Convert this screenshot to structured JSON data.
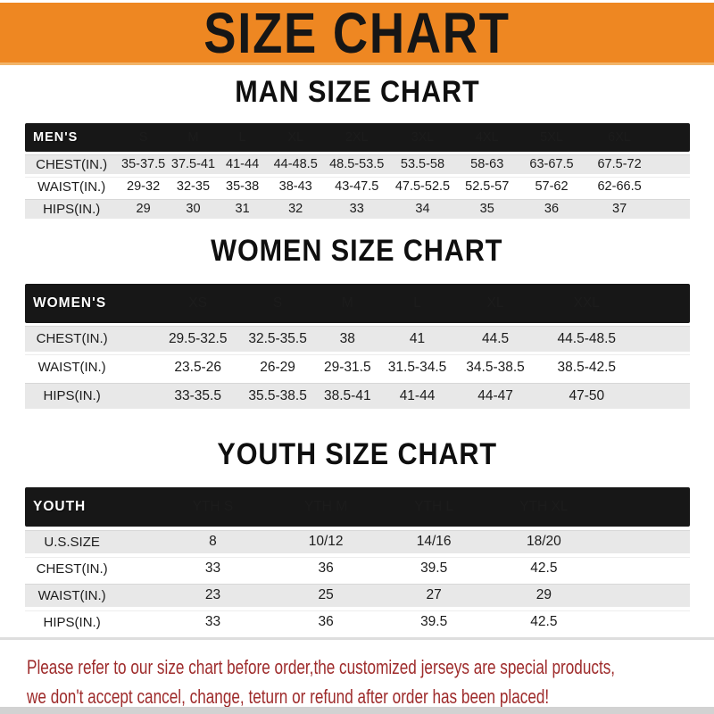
{
  "colors": {
    "banner_bg": "#ee8722",
    "band_black": "#171717",
    "row_gray": "#e8e8e8",
    "footer_red": "#9e2b2b",
    "text_dark": "#161616"
  },
  "banner": {
    "title": "SIZE CHART"
  },
  "men": {
    "title": "MAN SIZE CHART",
    "header": [
      "MEN'S",
      "S",
      "M",
      "L",
      "XL",
      "2XL",
      "3XL",
      "4XL",
      "5XL",
      "6XL"
    ],
    "rows": [
      {
        "label": "CHEST(IN.)",
        "values": [
          "35-37.5",
          "37.5-41",
          "41-44",
          "44-48.5",
          "48.5-53.5",
          "53.5-58",
          "58-63",
          "63-67.5",
          "67.5-72"
        ]
      },
      {
        "label": "WAIST(IN.)",
        "values": [
          "29-32",
          "32-35",
          "35-38",
          "38-43",
          "43-47.5",
          "47.5-52.5",
          "52.5-57",
          "57-62",
          "62-66.5"
        ]
      },
      {
        "label": "HIPS(IN.)",
        "values": [
          "29",
          "30",
          "31",
          "32",
          "33",
          "34",
          "35",
          "36",
          "37"
        ]
      }
    ]
  },
  "women": {
    "title": "WOMEN SIZE CHART",
    "header": [
      "WOMEN'S",
      "XS",
      "S",
      "M",
      "L",
      "XL",
      "XXL"
    ],
    "rows": [
      {
        "label": "CHEST(IN.)",
        "values": [
          "29.5-32.5",
          "32.5-35.5",
          "38",
          "41",
          "44.5",
          "44.5-48.5"
        ]
      },
      {
        "label": "WAIST(IN.)",
        "values": [
          "23.5-26",
          "26-29",
          "29-31.5",
          "31.5-34.5",
          "34.5-38.5",
          "38.5-42.5"
        ]
      },
      {
        "label": "HIPS(IN.)",
        "values": [
          "33-35.5",
          "35.5-38.5",
          "38.5-41",
          "41-44",
          "44-47",
          "47-50"
        ]
      }
    ]
  },
  "youth": {
    "title": "YOUTH SIZE CHART",
    "header": [
      "YOUTH",
      "YTH S",
      "YTH M",
      "YTH L",
      "YTH XL"
    ],
    "rows": [
      {
        "label": "U.S.SIZE",
        "values": [
          "8",
          "10/12",
          "14/16",
          "18/20"
        ]
      },
      {
        "label": "CHEST(IN.)",
        "values": [
          "33",
          "36",
          "39.5",
          "42.5"
        ]
      },
      {
        "label": "WAIST(IN.)",
        "values": [
          "23",
          "25",
          "27",
          "29"
        ]
      },
      {
        "label": "HIPS(IN.)",
        "values": [
          "33",
          "36",
          "39.5",
          "42.5"
        ]
      }
    ]
  },
  "footer": {
    "line1": "Please refer to our size chart before order,the customized jerseys are special products,",
    "line2": "we don't accept cancel, change, teturn or refund after order has been placed!"
  }
}
